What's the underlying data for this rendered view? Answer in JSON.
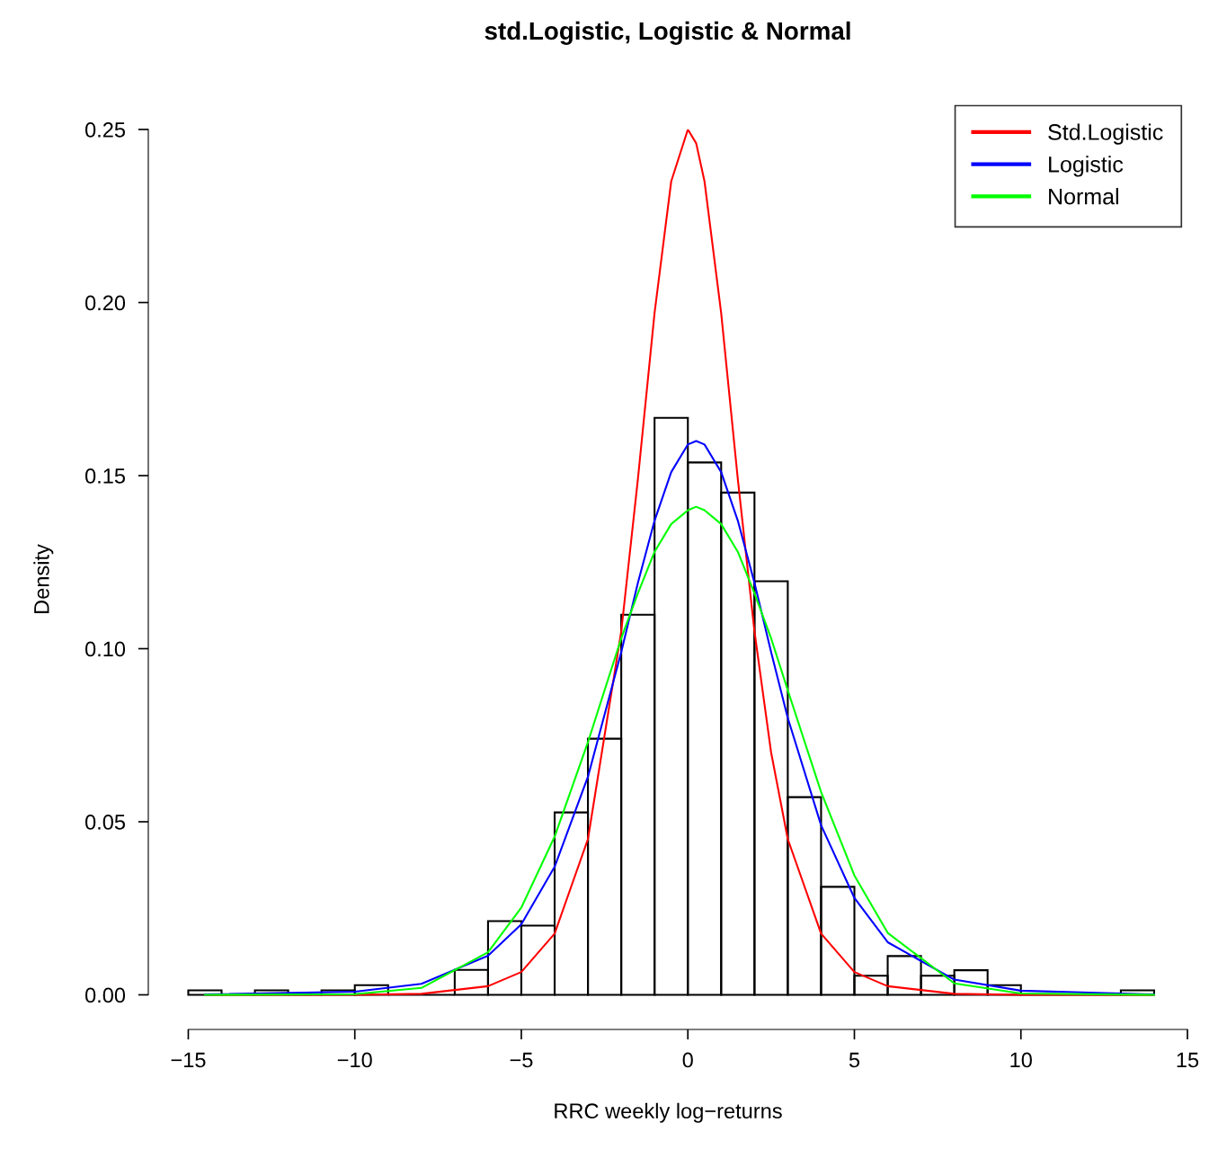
{
  "chart_data": {
    "type": "histogram",
    "title": "std.Logistic, Logistic & Normal",
    "xlabel": "RRC weekly log−returns",
    "ylabel": "Density",
    "bins": [
      -15,
      -14,
      -13,
      -12,
      -11,
      -10,
      -9,
      -8,
      -7,
      -6,
      -5,
      -4,
      -3,
      -2,
      -1,
      0,
      1,
      2,
      3,
      4,
      5,
      6,
      7,
      8,
      9,
      10,
      11,
      12,
      13,
      14
    ],
    "values": [
      0.0013,
      0,
      0.0013,
      0,
      0.0013,
      0.0028,
      0,
      0,
      0.0072,
      0.0213,
      0.02,
      0.0527,
      0.074,
      0.1098,
      0.1667,
      0.1538,
      0.1451,
      0.1195,
      0.0571,
      0.0312,
      0.0055,
      0.0112,
      0.0055,
      0.0071,
      0.0028,
      0,
      0,
      0,
      0.0013
    ],
    "series": [
      {
        "name": "Std.Logistic",
        "color": "#ff0000",
        "type": "line",
        "x": [
          -14.5,
          -10,
          -8,
          -6,
          -5,
          -4,
          -3,
          -2,
          -1.5,
          -1,
          -0.5,
          0,
          0.25,
          0.5,
          1,
          1.5,
          2,
          2.5,
          3,
          4,
          5,
          6,
          8,
          10,
          14
        ],
        "values": [
          0,
          0,
          0.0003,
          0.0025,
          0.0066,
          0.0177,
          0.045,
          0.105,
          0.149,
          0.197,
          0.235,
          0.25,
          0.246,
          0.235,
          0.197,
          0.149,
          0.105,
          0.07,
          0.045,
          0.0177,
          0.0066,
          0.0025,
          0.0003,
          0,
          0
        ]
      },
      {
        "name": "Logistic",
        "color": "#0000ff",
        "type": "line",
        "x": [
          -14.5,
          -10,
          -8,
          -6,
          -5,
          -4,
          -3,
          -2,
          -1.5,
          -1,
          -0.5,
          0,
          0.25,
          0.5,
          1,
          1.5,
          2,
          2.5,
          3,
          4,
          5,
          6,
          8,
          10,
          14
        ],
        "values": [
          0.0001,
          0.0009,
          0.0032,
          0.0113,
          0.0204,
          0.037,
          0.063,
          0.099,
          0.119,
          0.137,
          0.151,
          0.159,
          0.16,
          0.159,
          0.151,
          0.137,
          0.119,
          0.099,
          0.08,
          0.049,
          0.028,
          0.0152,
          0.0044,
          0.0012,
          0.0001
        ]
      },
      {
        "name": "Normal",
        "color": "#00ff00",
        "type": "line",
        "x": [
          -14.5,
          -10,
          -8,
          -6,
          -5,
          -4,
          -3,
          -2,
          -1.5,
          -1,
          -0.5,
          0,
          0.25,
          0.5,
          1,
          1.5,
          2,
          2.5,
          3,
          4,
          5,
          6,
          8,
          10,
          14
        ],
        "values": [
          0,
          0.0002,
          0.002,
          0.0123,
          0.0252,
          0.0457,
          0.073,
          0.103,
          0.116,
          0.128,
          0.136,
          0.14,
          0.141,
          0.14,
          0.136,
          0.128,
          0.116,
          0.103,
          0.088,
          0.0586,
          0.0345,
          0.0179,
          0.0033,
          0.0004,
          0
        ]
      }
    ],
    "xlim": [
      -16.2,
      15
    ],
    "ylim": [
      -0.01,
      0.25
    ],
    "xticks": [
      {
        "value": -15,
        "label": "−15"
      },
      {
        "value": -10,
        "label": "−10"
      },
      {
        "value": -5,
        "label": "−5"
      },
      0,
      5,
      10,
      15
    ],
    "yticks": [
      {
        "value": 0,
        "label": "0.00"
      },
      {
        "value": 0.05,
        "label": "0.05"
      },
      {
        "value": 0.1,
        "label": "0.10"
      },
      {
        "value": 0.15,
        "label": "0.15"
      },
      {
        "value": 0.2,
        "label": "0.20"
      },
      {
        "value": 0.25,
        "label": "0.25"
      }
    ],
    "legend": "top right",
    "grid": false
  }
}
